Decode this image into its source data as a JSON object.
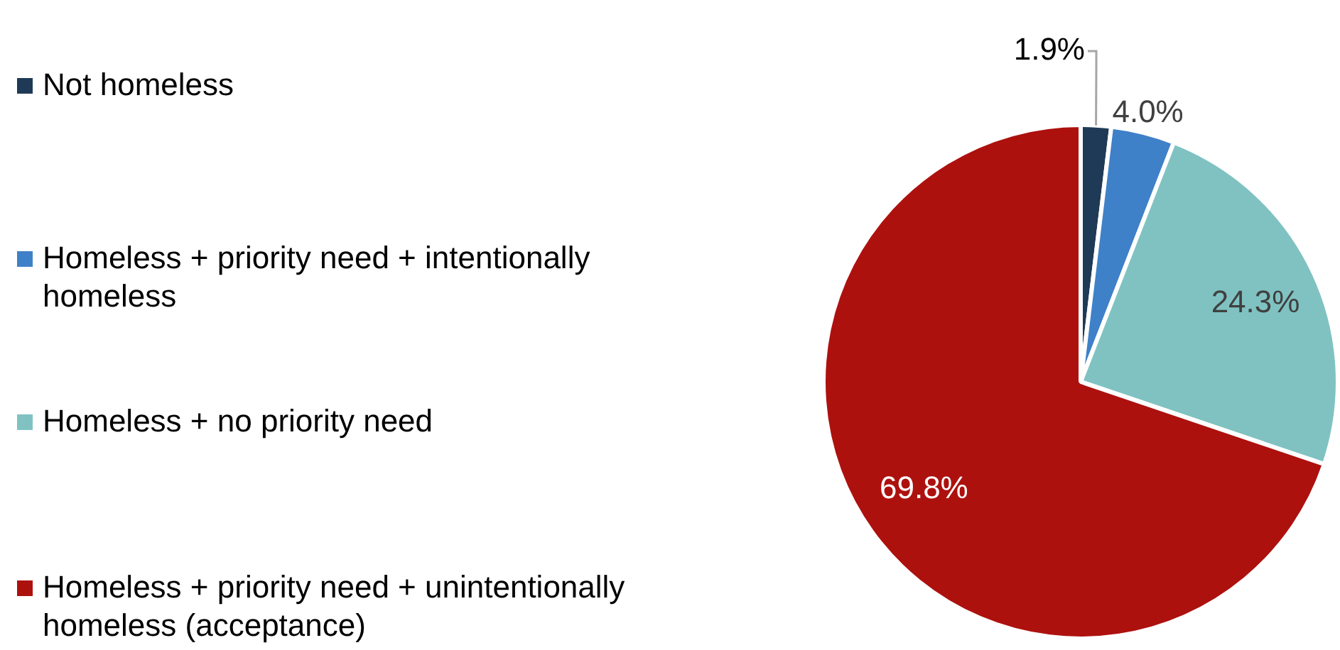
{
  "chart_data": {
    "type": "pie",
    "categories": [
      "Not homeless",
      "Homeless + priority need + intentionally homeless",
      "Homeless + no priority need",
      "Homeless + priority need + unintentionally homeless (acceptance)"
    ],
    "values": [
      1.9,
      4.0,
      24.3,
      69.8
    ],
    "colors": [
      "#1f3a56",
      "#3f81c8",
      "#80c2c2",
      "#ad110e"
    ],
    "value_labels": [
      "1.9%",
      "4.0%",
      "24.3%",
      "69.8%"
    ],
    "legend": "left"
  }
}
